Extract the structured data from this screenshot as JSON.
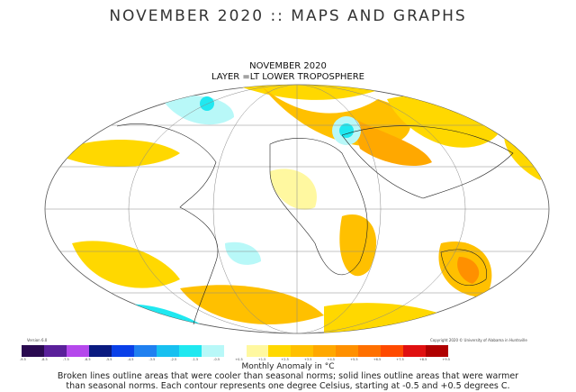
{
  "page_title": "NOVEMBER 2020 :: MAPS AND GRAPHS",
  "map": {
    "title": "NOVEMBER 2020",
    "layer": "LAYER =LT LOWER TROPOSPHERE",
    "version": "Version 6.0",
    "copyright": "Copyright 2020 © University of Alabama in Huntsville"
  },
  "legend": {
    "colors": [
      "#2a0a50",
      "#5a209a",
      "#b548ec",
      "#0a1a80",
      "#0a40e8",
      "#2080f0",
      "#18c0f0",
      "#20e8f0",
      "#b8f8f8",
      "#ffffff",
      "#fff8a0",
      "#ffd800",
      "#ffc000",
      "#ffa800",
      "#ff9000",
      "#ff7000",
      "#ff4a00",
      "#e01010",
      "#b00000"
    ],
    "ticks": [
      "-9.5",
      "-8.5",
      "-7.5",
      "-6.5",
      "-5.5",
      "-4.5",
      "-3.5",
      "-2.5",
      "-1.5",
      "-0.5",
      "+0.5",
      "+1.5",
      "+2.5",
      "+3.5",
      "+4.5",
      "+5.5",
      "+6.5",
      "+7.5",
      "+8.5",
      "+9.5"
    ],
    "label": "Monthly Anomaly in °C"
  },
  "caption": [
    "Broken lines outline areas that were cooler than seasonal norms; solid lines outline areas that were warmer",
    "than seasonal norms. Each contour represents one degree Celsius, starting at -0.5 and +0.5 degrees C."
  ]
}
